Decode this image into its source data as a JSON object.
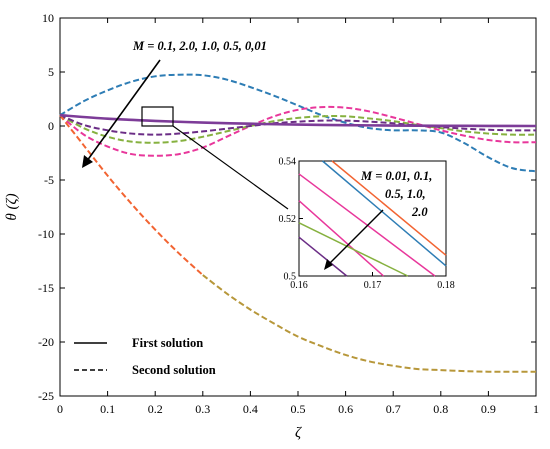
{
  "chart_data": {
    "type": "line",
    "xlabel": "ζ",
    "ylabel": "θ (ζ)",
    "xlim": [
      0,
      1
    ],
    "ylim": [
      -25,
      10
    ],
    "x_ticks": [
      "0",
      "0.1",
      "0.2",
      "0.3",
      "0.4",
      "0.5",
      "0.6",
      "0.7",
      "0.8",
      "0.9",
      "1"
    ],
    "y_ticks": [
      "10",
      "5",
      "0",
      "-5",
      "-10",
      "-15",
      "-20",
      "-25"
    ],
    "annotation_main": "M = 0.1, 2.0, 1.0, 0.5, 0,01",
    "legend": [
      {
        "label": "First solution",
        "style": "solid"
      },
      {
        "label": "Second solution",
        "style": "dashed"
      }
    ],
    "colors": {
      "blue": "#2e7db5",
      "magenta": "#e8379b",
      "green": "#86b13f",
      "purple": "#6b2d86",
      "orange": "#f26432",
      "olive": "#b7973a",
      "first_solution_main": "#7d3c98"
    },
    "first_solution_main": {
      "x": [
        0,
        0.1,
        0.2,
        0.3,
        0.4,
        0.5,
        0.6,
        0.7,
        0.8,
        0.9,
        1.0
      ],
      "y": [
        1.0,
        0.68,
        0.47,
        0.32,
        0.21,
        0.13,
        0.08,
        0.04,
        0.02,
        0.01,
        0.0
      ]
    },
    "second_solution": [
      {
        "color": "blue",
        "x": [
          0,
          0.05,
          0.1,
          0.15,
          0.2,
          0.25,
          0.3,
          0.35,
          0.4,
          0.45,
          0.5,
          0.55,
          0.6,
          0.65,
          0.7,
          0.75,
          0.8,
          0.85,
          0.9,
          0.95,
          1.0
        ],
        "y": [
          1.0,
          2.3,
          3.3,
          4.1,
          4.6,
          4.75,
          4.7,
          4.3,
          3.6,
          2.8,
          1.9,
          1.0,
          0.3,
          -0.2,
          -0.4,
          -0.4,
          -0.6,
          -1.6,
          -2.9,
          -3.9,
          -4.2
        ]
      },
      {
        "color": "magenta",
        "x": [
          0,
          0.05,
          0.1,
          0.15,
          0.2,
          0.25,
          0.3,
          0.35,
          0.4,
          0.45,
          0.5,
          0.55,
          0.6,
          0.65,
          0.7,
          0.75,
          0.8,
          0.85,
          0.9,
          0.95,
          1.0
        ],
        "y": [
          1.0,
          -0.8,
          -1.9,
          -2.6,
          -2.75,
          -2.6,
          -2.0,
          -1.0,
          0.0,
          0.9,
          1.5,
          1.75,
          1.7,
          1.35,
          0.8,
          0.2,
          -0.4,
          -0.9,
          -1.3,
          -1.5,
          -1.5
        ]
      },
      {
        "color": "green",
        "x": [
          0,
          0.05,
          0.1,
          0.15,
          0.2,
          0.25,
          0.3,
          0.35,
          0.4,
          0.45,
          0.5,
          0.55,
          0.6,
          0.65,
          0.7,
          0.75,
          0.8,
          0.85,
          0.9,
          0.95,
          1.0
        ],
        "y": [
          1.0,
          -0.2,
          -1.0,
          -1.45,
          -1.55,
          -1.4,
          -1.0,
          -0.5,
          0.0,
          0.45,
          0.75,
          0.9,
          0.9,
          0.7,
          0.45,
          0.1,
          -0.2,
          -0.5,
          -0.7,
          -0.8,
          -0.8
        ]
      },
      {
        "color": "purple",
        "x": [
          0,
          0.05,
          0.1,
          0.15,
          0.2,
          0.25,
          0.3,
          0.35,
          0.4,
          0.45,
          0.5,
          0.55,
          0.6,
          0.65,
          0.7,
          0.75,
          0.8,
          0.85,
          0.9,
          0.95,
          1.0
        ],
        "y": [
          1.0,
          0.1,
          -0.4,
          -0.7,
          -0.8,
          -0.7,
          -0.5,
          -0.25,
          0.0,
          0.25,
          0.4,
          0.5,
          0.5,
          0.4,
          0.25,
          0.05,
          -0.1,
          -0.25,
          -0.35,
          -0.4,
          -0.4
        ]
      },
      {
        "color": "orange",
        "x": [
          0,
          0.05,
          0.1,
          0.15,
          0.2,
          0.25,
          0.3
        ],
        "y": [
          1.0,
          -1.8,
          -4.6,
          -7.2,
          -9.6,
          -11.8,
          -13.8
        ]
      },
      {
        "color": "olive",
        "x": [
          0.3,
          0.35,
          0.4,
          0.45,
          0.5,
          0.55,
          0.6,
          0.65,
          0.7,
          0.75,
          0.8,
          0.85,
          0.9,
          0.95,
          1.0
        ],
        "y": [
          -13.8,
          -15.5,
          -17.0,
          -18.3,
          -19.5,
          -20.4,
          -21.2,
          -21.8,
          -22.2,
          -22.5,
          -22.6,
          -22.7,
          -22.75,
          -22.75,
          -22.75
        ]
      }
    ],
    "inset": {
      "xlim": [
        0.16,
        0.18
      ],
      "ylim": [
        0.5,
        0.54
      ],
      "x_ticks": [
        "0.16",
        "0.17",
        "0.18"
      ],
      "y_ticks": [
        "0.54",
        "0.52",
        "0.5"
      ],
      "annotation_lines": [
        "M = 0.01, 0.1,",
        "0.5, 1.0,",
        "2.0"
      ],
      "lines": [
        {
          "color": "purple",
          "x": [
            0.16,
            0.1665
          ],
          "y": [
            0.5135,
            0.5
          ]
        },
        {
          "color": "magenta",
          "x": [
            0.16,
            0.1715
          ],
          "y": [
            0.5262,
            0.5
          ]
        },
        {
          "color": "green",
          "x": [
            0.16,
            0.1748
          ],
          "y": [
            0.5185,
            0.5
          ]
        },
        {
          "color": "blue",
          "x": [
            0.1632,
            0.18
          ],
          "y": [
            0.54,
            0.5035
          ]
        },
        {
          "color": "orange",
          "x": [
            0.1645,
            0.18
          ],
          "y": [
            0.54,
            0.5072
          ]
        },
        {
          "color": "magenta",
          "x": [
            0.16,
            0.1785
          ],
          "y": [
            0.5355,
            0.5
          ]
        }
      ]
    }
  }
}
